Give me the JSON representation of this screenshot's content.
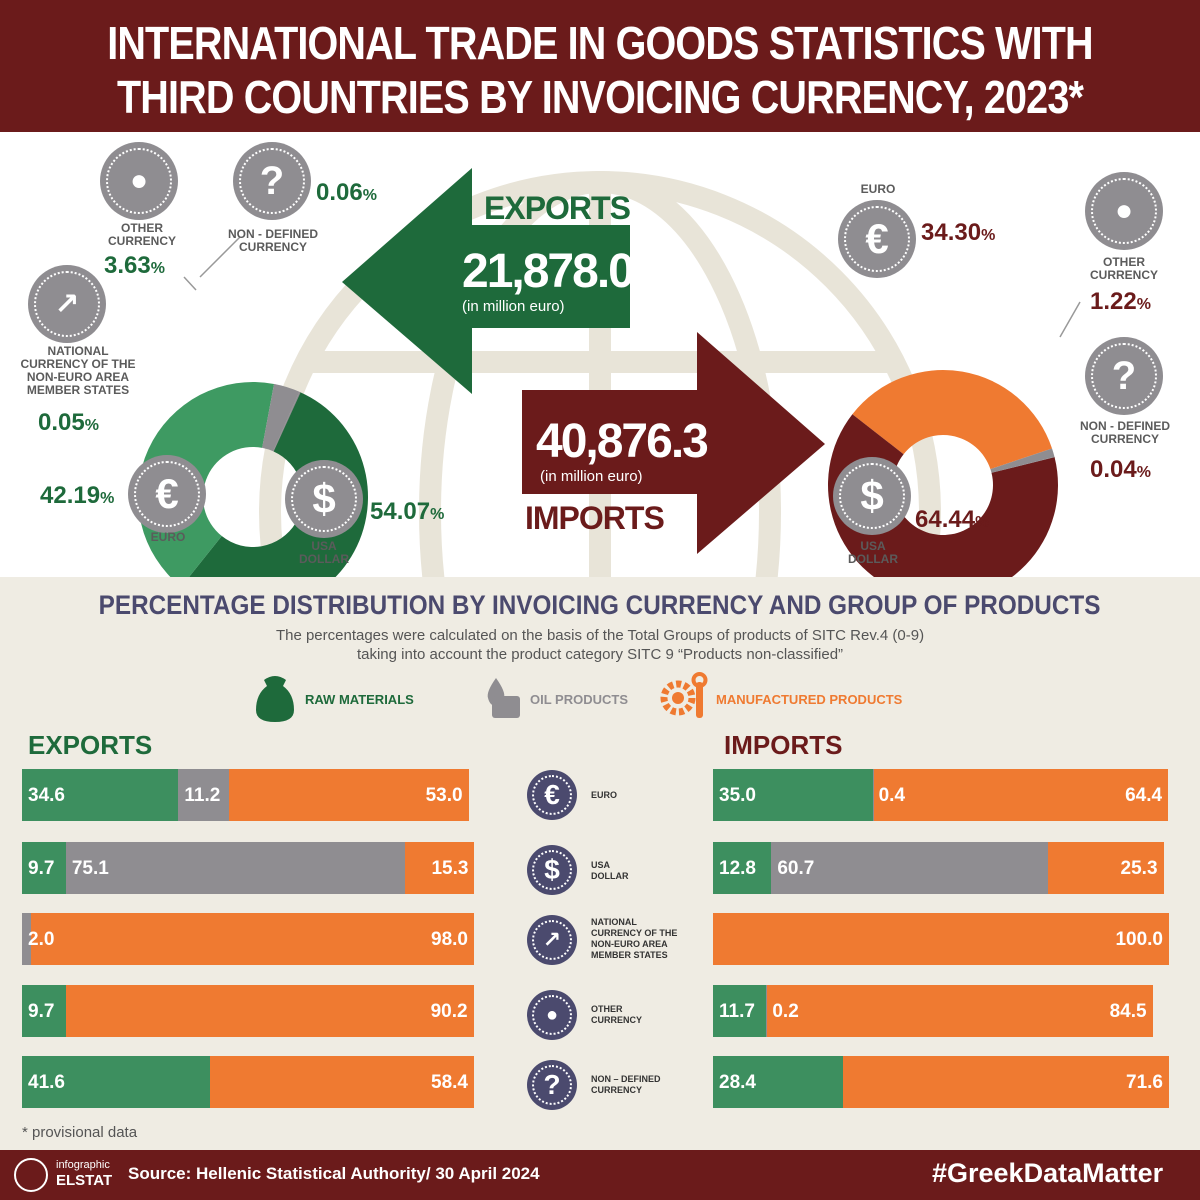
{
  "header": {
    "title_line1": "INTERNATIONAL TRADE IN GOODS STATISTICS WITH",
    "title_line2": "THIRD COUNTRIES BY INVOICING CURRENCY, 2023*"
  },
  "exports_summary": {
    "label": "EXPORTS",
    "value": "21,878.0",
    "unit": "(in million euro)"
  },
  "imports_summary": {
    "label": "IMPORTS",
    "value": "40,876.3",
    "unit": "(in million euro)"
  },
  "colors": {
    "exports_dark": "#1e6a3b",
    "exports_light": "#3e9a62",
    "imports_dark": "#6b1b1b",
    "imports_orange": "#ef7a31",
    "gray": "#8f8d91",
    "raw": "#3d8f5f",
    "oil": "#8f8d91",
    "manufactured": "#ef7a31",
    "mid_icon": "#4b4a6e"
  },
  "donut_labels": {
    "other_currency": "OTHER\nCURRENCY",
    "non_defined": "NON - DEFINED\nCURRENCY",
    "national": "NATIONAL\nCURRENCY OF THE\nNON-EURO AREA\nMEMBER STATES",
    "euro": "EURO",
    "usa_dollar": "USA\nDOLLAR"
  },
  "exports_pct": {
    "other": "3.63",
    "non_defined": "0.06",
    "national": "0.05",
    "euro": "42.19",
    "usd": "54.07",
    "sign": "%"
  },
  "imports_pct": {
    "euro": "34.30",
    "other": "1.22",
    "non_defined": "0.04",
    "usd": "64.44",
    "sign": "%"
  },
  "section": {
    "title": "PERCENTAGE DISTRIBUTION BY INVOICING CURRENCY AND GROUP OF PRODUCTS",
    "sub1": "The percentages were calculated on the basis of the Total Groups of products of SITC Rev.4 (0-9)",
    "sub2": "taking into account the product category SITC 9 “Products non-classified”"
  },
  "legend": {
    "raw": "RAW MATERIALS",
    "oil": "OIL PRODUCTS",
    "manufactured": "MANUFACTURED PRODUCTS"
  },
  "bars_exports_title": "EXPORTS",
  "bars_imports_title": "IMPORTS",
  "mid_labels": [
    "EURO",
    "USA\nDOLLAR",
    "NATIONAL\nCURRENCY OF THE\nNON-EURO AREA\nMEMBER STATES",
    "OTHER\nCURRENCY",
    "NON – DEFINED\nCURRENCY"
  ],
  "footnote": "* provisional data",
  "footer": {
    "logo_line1": "infographic",
    "logo_line2": "ELSTAT",
    "source": "Source: Hellenic Statistical Authority/ 30 April 2024",
    "hashtag": "#GreekDataMatter"
  },
  "chart_data": [
    {
      "type": "pie",
      "title": "EXPORTS",
      "categories": [
        "USA DOLLAR",
        "EURO",
        "NATIONAL CURRENCY OF THE NON-EURO AREA MEMBER STATES",
        "OTHER CURRENCY",
        "NON - DEFINED CURRENCY"
      ],
      "values": [
        54.07,
        42.19,
        0.05,
        3.63,
        0.06
      ]
    },
    {
      "type": "pie",
      "title": "IMPORTS",
      "categories": [
        "EURO",
        "OTHER CURRENCY",
        "NON - DEFINED CURRENCY",
        "USA DOLLAR"
      ],
      "values": [
        34.3,
        1.22,
        0.04,
        64.44
      ]
    },
    {
      "type": "bar",
      "title": "EXPORTS",
      "orientation": "horizontal-stacked",
      "categories": [
        "EURO",
        "USA DOLLAR",
        "NATIONAL CURRENCY OF THE NON-EURO AREA MEMBER STATES",
        "OTHER CURRENCY",
        "NON – DEFINED CURRENCY"
      ],
      "series": [
        {
          "name": "RAW MATERIALS",
          "values": [
            34.6,
            9.7,
            0.0,
            9.7,
            41.6
          ]
        },
        {
          "name": "OIL PRODUCTS",
          "values": [
            11.2,
            75.1,
            2.0,
            0.0,
            0.0
          ]
        },
        {
          "name": "MANUFACTURED PRODUCTS",
          "values": [
            53.0,
            15.3,
            98.0,
            90.2,
            58.4
          ]
        }
      ],
      "labels": [
        [
          "34.6",
          "11.2",
          "53.0"
        ],
        [
          "9.7",
          "75.1",
          "15.3"
        ],
        [
          "",
          "2.0",
          "98.0"
        ],
        [
          "9.7",
          "",
          "90.2"
        ],
        [
          "41.6",
          "",
          "58.4"
        ]
      ]
    },
    {
      "type": "bar",
      "title": "IMPORTS",
      "orientation": "horizontal-stacked",
      "categories": [
        "EURO",
        "USA DOLLAR",
        "NATIONAL CURRENCY OF THE NON-EURO AREA MEMBER STATES",
        "OTHER CURRENCY",
        "NON – DEFINED CURRENCY"
      ],
      "series": [
        {
          "name": "RAW MATERIALS",
          "values": [
            35.0,
            12.8,
            0.0,
            11.7,
            28.4
          ]
        },
        {
          "name": "OIL PRODUCTS",
          "values": [
            0.4,
            60.7,
            0.0,
            0.2,
            0.0
          ]
        },
        {
          "name": "MANUFACTURED PRODUCTS",
          "values": [
            64.4,
            25.3,
            100.0,
            84.5,
            71.6
          ]
        }
      ],
      "labels": [
        [
          "35.0",
          "0.4",
          "64.4"
        ],
        [
          "12.8",
          "60.7",
          "25.3"
        ],
        [
          "",
          "",
          "100.0"
        ],
        [
          "11.7",
          "0.2",
          "84.5"
        ],
        [
          "28.4",
          "",
          "71.6"
        ]
      ]
    }
  ]
}
